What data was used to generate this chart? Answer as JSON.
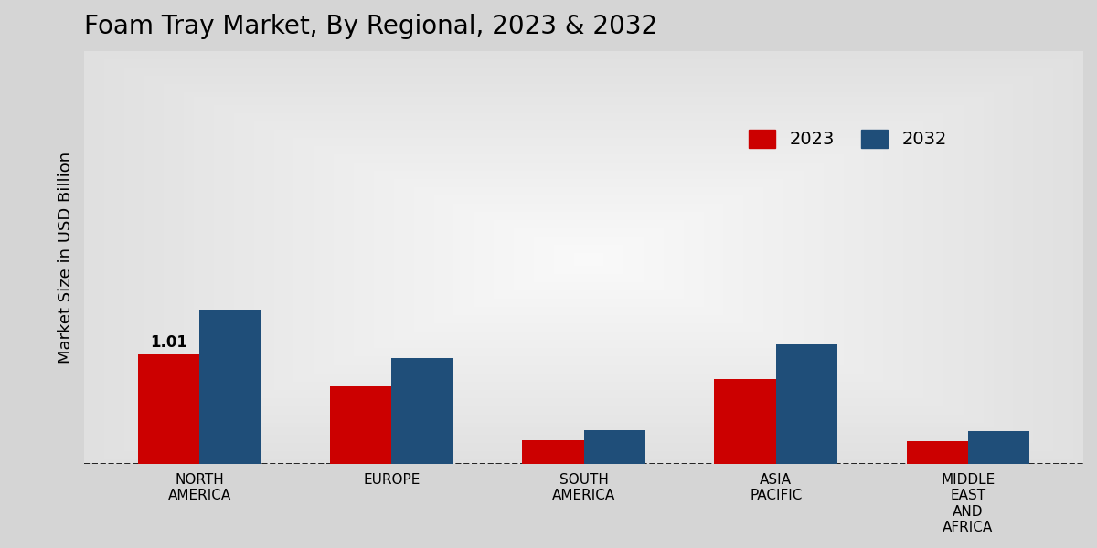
{
  "title": "Foam Tray Market, By Regional, 2023 & 2032",
  "ylabel": "Market Size in USD Billion",
  "categories": [
    "NORTH\nAMERICA",
    "EUROPE",
    "SOUTH\nAMERICA",
    "ASIA\nPACIFIC",
    "MIDDLE\nEAST\nAND\nAFRICA"
  ],
  "values_2023": [
    1.01,
    0.72,
    0.22,
    0.78,
    0.21
  ],
  "values_2032": [
    1.42,
    0.98,
    0.31,
    1.1,
    0.3
  ],
  "color_2023": "#cc0000",
  "color_2032": "#1f4e79",
  "bar_annotation": "1.01",
  "bg_outer": "#c8c8c8",
  "bg_inner": "#e8e8e8",
  "legend_labels": [
    "2023",
    "2032"
  ],
  "ylim": [
    0,
    3.8
  ],
  "bar_width": 0.32,
  "title_fontsize": 20,
  "axis_label_fontsize": 13,
  "tick_fontsize": 11,
  "legend_fontsize": 14
}
